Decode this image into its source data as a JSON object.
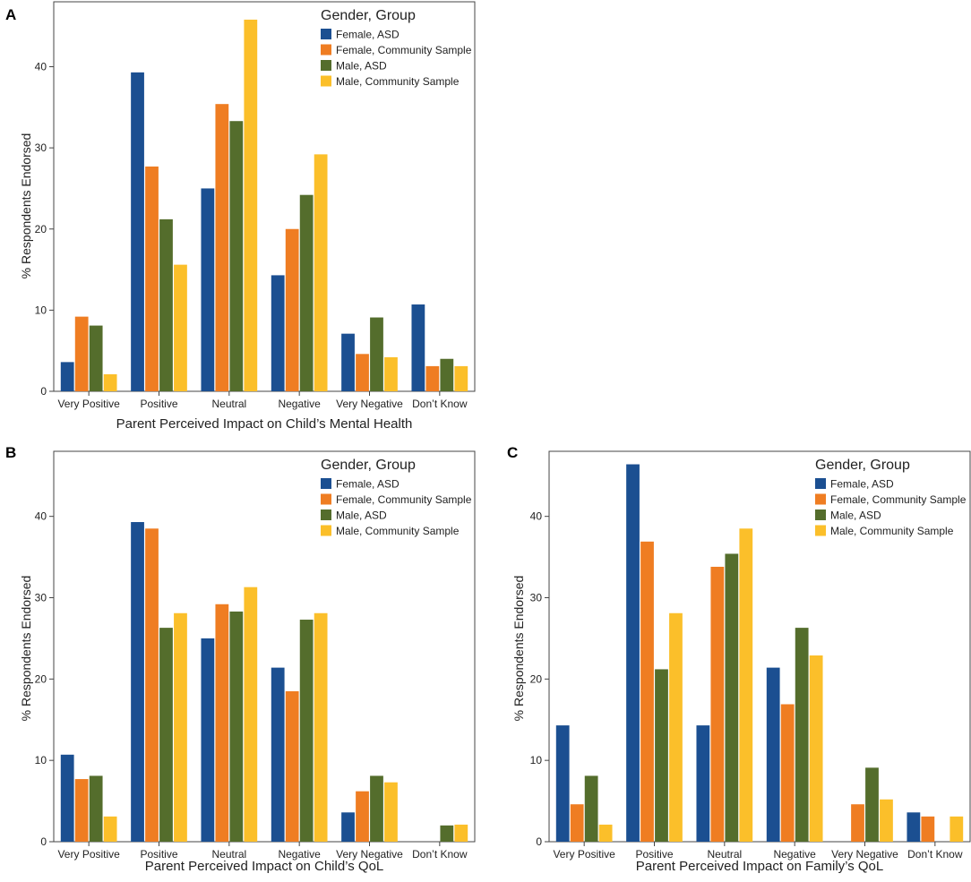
{
  "chart_data": [
    {
      "panel": "A",
      "type": "bar",
      "xlabel": "Parent Perceived Impact on Child’s Mental Health",
      "ylabel": "% Respondents Endorsed",
      "ylim": [
        0,
        48
      ],
      "yticks": [
        0,
        10,
        20,
        30,
        40
      ],
      "legend_title": "Gender, Group",
      "categories": [
        "Very Positive",
        "Positive",
        "Neutral",
        "Negative",
        "Very Negative",
        "Don’t Know"
      ],
      "series": [
        {
          "name": "Female, ASD",
          "color": "#1b4f91",
          "values": [
            3.6,
            39.3,
            25.0,
            14.3,
            7.1,
            10.7
          ]
        },
        {
          "name": "Female, Community Sample",
          "color": "#ef7d22",
          "values": [
            9.2,
            27.7,
            35.4,
            20.0,
            4.6,
            3.1
          ]
        },
        {
          "name": "Male, ASD",
          "color": "#546d2c",
          "values": [
            8.1,
            21.2,
            33.3,
            24.2,
            9.1,
            4.0
          ]
        },
        {
          "name": "Male, Community Sample",
          "color": "#fbbf2a",
          "values": [
            2.1,
            15.6,
            45.8,
            29.2,
            4.2,
            3.1
          ]
        }
      ]
    },
    {
      "panel": "B",
      "type": "bar",
      "xlabel": "Parent Perceived Impact on Child’s QoL",
      "ylabel": "% Respondents Endorsed",
      "ylim": [
        0,
        48
      ],
      "yticks": [
        0,
        10,
        20,
        30,
        40
      ],
      "legend_title": "Gender, Group",
      "categories": [
        "Very Positive",
        "Positive",
        "Neutral",
        "Negative",
        "Very Negative",
        "Don’t Know"
      ],
      "series": [
        {
          "name": "Female, ASD",
          "color": "#1b4f91",
          "values": [
            10.7,
            39.3,
            25.0,
            21.4,
            3.6,
            0
          ]
        },
        {
          "name": "Female, Community Sample",
          "color": "#ef7d22",
          "values": [
            7.7,
            38.5,
            29.2,
            18.5,
            6.2,
            0
          ]
        },
        {
          "name": "Male, ASD",
          "color": "#546d2c",
          "values": [
            8.1,
            26.3,
            28.3,
            27.3,
            8.1,
            2.0
          ]
        },
        {
          "name": "Male, Community Sample",
          "color": "#fbbf2a",
          "values": [
            3.1,
            28.1,
            31.3,
            28.1,
            7.3,
            2.1
          ]
        }
      ]
    },
    {
      "panel": "C",
      "type": "bar",
      "xlabel": "Parent Perceived Impact on Family’s QoL",
      "ylabel": "% Respondents Endorsed",
      "ylim": [
        0,
        48
      ],
      "yticks": [
        0,
        10,
        20,
        30,
        40
      ],
      "legend_title": "Gender, Group",
      "categories": [
        "Very Positive",
        "Positive",
        "Neutral",
        "Negative",
        "Very Negative",
        "Don’t Know"
      ],
      "series": [
        {
          "name": "Female, ASD",
          "color": "#1b4f91",
          "values": [
            14.3,
            46.4,
            14.3,
            21.4,
            0,
            3.6
          ]
        },
        {
          "name": "Female, Community Sample",
          "color": "#ef7d22",
          "values": [
            4.6,
            36.9,
            33.8,
            16.9,
            4.6,
            3.1
          ]
        },
        {
          "name": "Male, ASD",
          "color": "#546d2c",
          "values": [
            8.1,
            21.2,
            35.4,
            26.3,
            9.1,
            0
          ]
        },
        {
          "name": "Male, Community Sample",
          "color": "#fbbf2a",
          "values": [
            2.1,
            28.1,
            38.5,
            22.9,
            5.2,
            3.1
          ]
        }
      ]
    }
  ]
}
